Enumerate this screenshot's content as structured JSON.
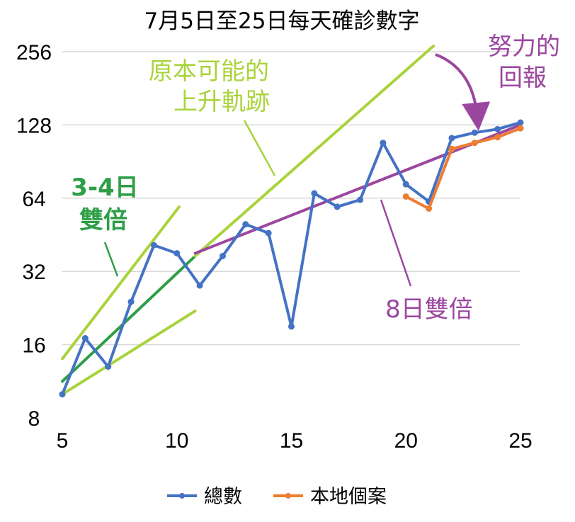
{
  "chart_data": {
    "type": "line",
    "title": "7月5日至25日每天確診數字",
    "y_scale": "log2",
    "ylim": [
      8,
      256
    ],
    "xlim": [
      5,
      25
    ],
    "x_ticks": [
      "5",
      "10",
      "15",
      "20",
      "25"
    ],
    "y_ticks": [
      "8",
      "16",
      "32",
      "64",
      "128",
      "256"
    ],
    "grid": "horizontal",
    "legend_position": "bottom",
    "series": [
      {
        "name": "總數",
        "color": "#4472C4",
        "x": [
          5,
          6,
          7,
          8,
          9,
          10,
          11,
          12,
          13,
          14,
          15,
          16,
          17,
          18,
          19,
          20,
          21,
          22,
          23,
          24,
          25
        ],
        "values": [
          10,
          17,
          13,
          24,
          41,
          38,
          28,
          37,
          50,
          46,
          19,
          67,
          59,
          63,
          108,
          73,
          62,
          113,
          119,
          123,
          131
        ]
      },
      {
        "name": "本地個案",
        "color": "#ED7D31",
        "x": [
          20,
          21,
          22,
          23,
          24,
          25
        ],
        "values": [
          65,
          58,
          102,
          108,
          114,
          124
        ]
      }
    ],
    "trend_lines": [
      {
        "color": "#A9D33C",
        "x": [
          5,
          10.1
        ],
        "values": [
          14,
          59
        ]
      },
      {
        "color": "#A9D33C",
        "x": [
          5,
          10.8
        ],
        "values": [
          10,
          22
        ]
      },
      {
        "color": "#2E9E47",
        "x": [
          5,
          10.8
        ],
        "values": [
          11.3,
          37
        ]
      },
      {
        "color": "#A9D33C",
        "x": [
          10.8,
          21.2
        ],
        "values": [
          37,
          270
        ]
      },
      {
        "color": "#9B479F",
        "x": [
          10.8,
          25
        ],
        "values": [
          38,
          128
        ]
      }
    ],
    "annotations": [
      {
        "text_lines": [
          "原本可能的",
          "上升軌跡"
        ],
        "color": "#A9D33C"
      },
      {
        "text_lines": [
          "3-4日",
          "雙倍"
        ],
        "color": "#2E9E47"
      },
      {
        "text_lines": [
          "8日雙倍"
        ],
        "color": "#9B479F"
      },
      {
        "text_lines": [
          "努力的",
          "回報"
        ],
        "color": "#9B479F"
      }
    ]
  }
}
